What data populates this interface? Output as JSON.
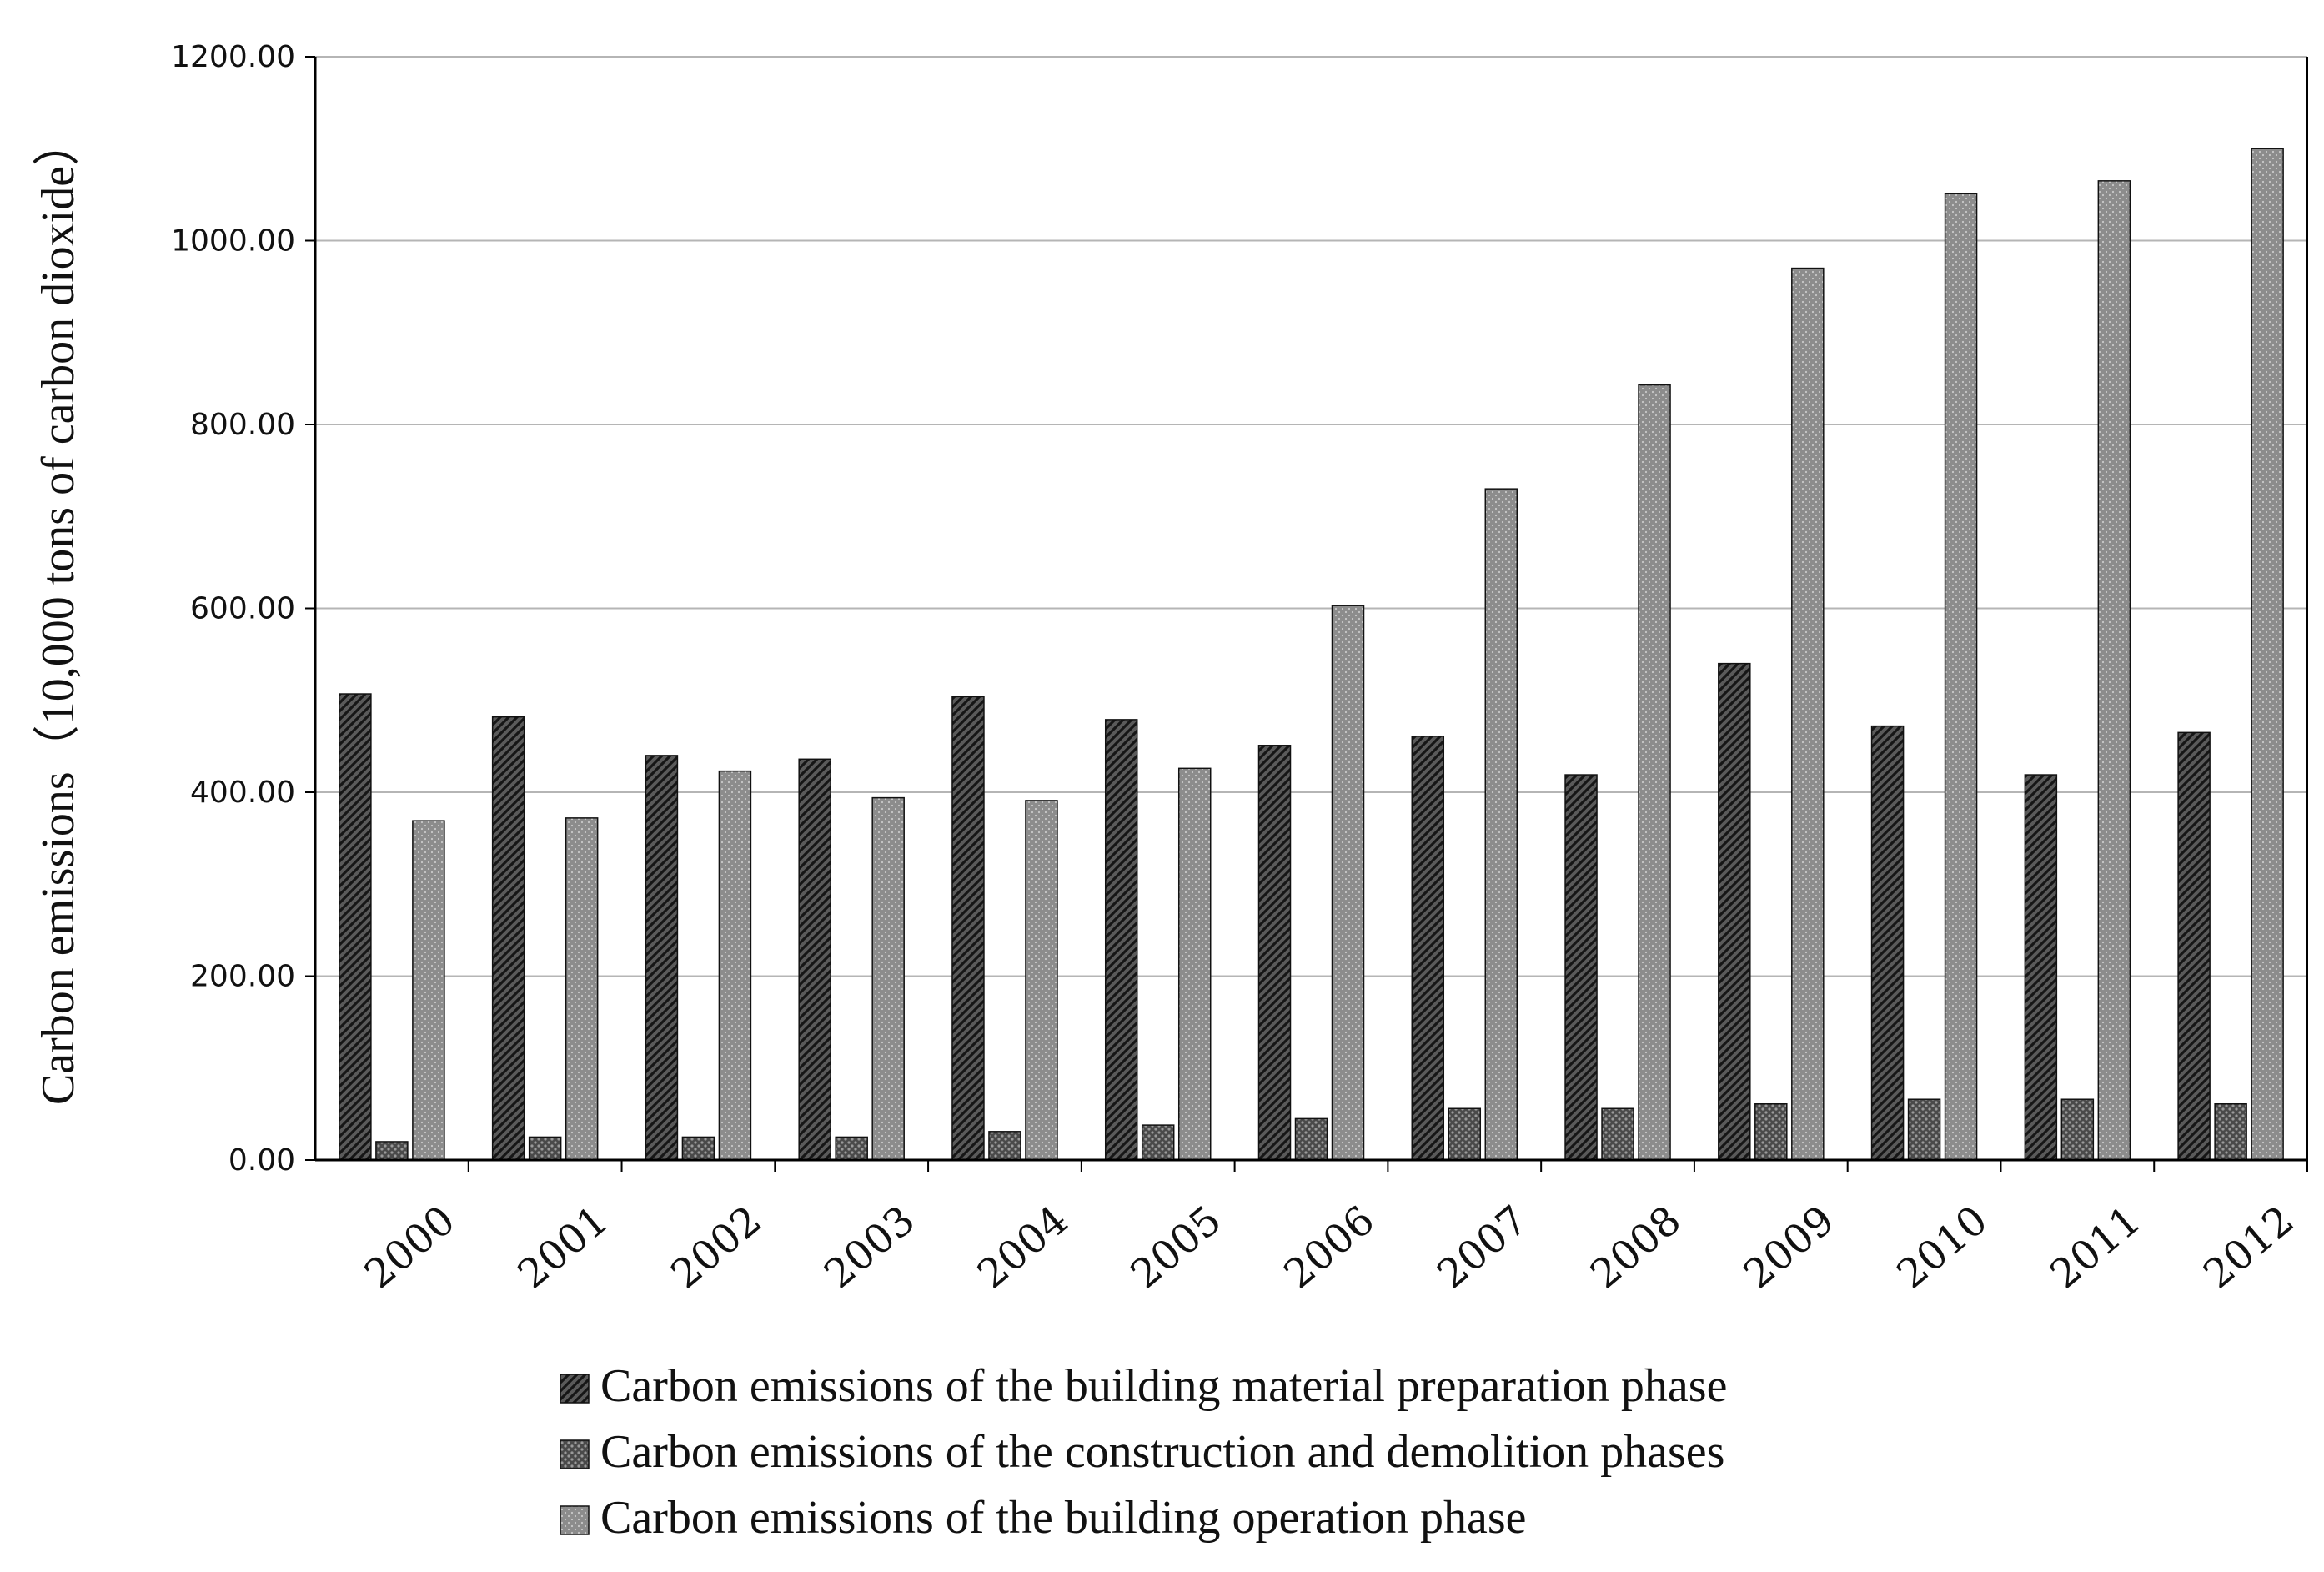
{
  "chart_data": {
    "type": "bar",
    "title": "",
    "xlabel": "",
    "ylabel": "Carbon emissions（10,000 tons of carbon dioxide）",
    "ylim": [
      0,
      1200
    ],
    "yticks": [
      "0.00",
      "200.00",
      "400.00",
      "600.00",
      "800.00",
      "1000.00",
      "1200.00"
    ],
    "grid": true,
    "legend_position": "bottom",
    "categories": [
      "2000",
      "2001",
      "2002",
      "2003",
      "2004",
      "2005",
      "2006",
      "2007",
      "2008",
      "2009",
      "2010",
      "2011",
      "2012"
    ],
    "series": [
      {
        "name": "Carbon emissions of the building material preparation phase",
        "pattern": "diagonal-hatch",
        "color": "#333333",
        "values": [
          507,
          482,
          440,
          436,
          504,
          479,
          451,
          461,
          419,
          540,
          472,
          419,
          465
        ]
      },
      {
        "name": "Carbon emissions of the construction and demolition phases",
        "pattern": "crosshatch",
        "color": "#555555",
        "values": [
          20,
          25,
          25,
          25,
          31,
          38,
          45,
          56,
          56,
          61,
          66,
          66,
          61
        ]
      },
      {
        "name": "Carbon emissions of the building operation phase",
        "pattern": "dotted",
        "color": "#8c8c8c",
        "values": [
          369,
          372,
          423,
          394,
          391,
          426,
          603,
          730,
          843,
          970,
          1051,
          1065,
          1100
        ]
      }
    ]
  }
}
